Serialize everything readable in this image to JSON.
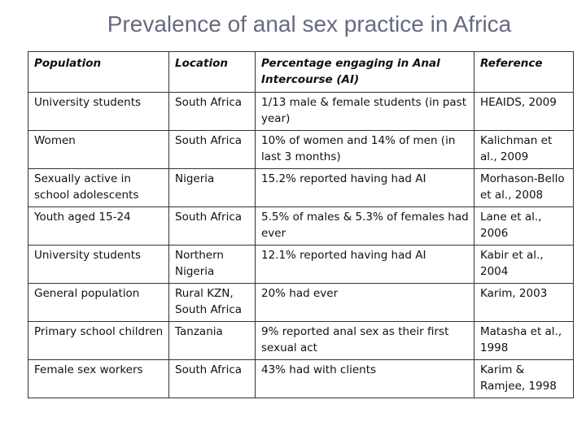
{
  "title": "Prevalence of anal sex practice in Africa",
  "table": {
    "headers": [
      "Population",
      "Location",
      "Percentage engaging in Anal Intercourse (AI)",
      "Reference"
    ],
    "rows": [
      [
        "University students",
        "South Africa",
        "1/13 male & female students (in past year)",
        "HEAIDS, 2009"
      ],
      [
        "Women",
        "South Africa",
        "10% of women and 14% of men (in last 3 months)",
        "Kalichman et al., 2009"
      ],
      [
        "Sexually active in school adolescents",
        "Nigeria",
        "15.2% reported having had AI",
        "Morhason-Bello et al., 2008"
      ],
      [
        "Youth aged 15-24",
        "South Africa",
        "5.5% of males & 5.3% of females had ever",
        "Lane et al., 2006"
      ],
      [
        "University students",
        "Northern Nigeria",
        "12.1% reported having had AI",
        "Kabir et al., 2004"
      ],
      [
        "General population",
        "Rural KZN, South Africa",
        "20% had ever",
        "Karim, 2003"
      ],
      [
        "Primary school children",
        "Tanzania",
        "9% reported anal sex as their first sexual act",
        "Matasha et al., 1998"
      ],
      [
        "Female sex workers",
        "South Africa",
        "43% had with clients",
        "Karim & Ramjee, 1998"
      ]
    ]
  }
}
